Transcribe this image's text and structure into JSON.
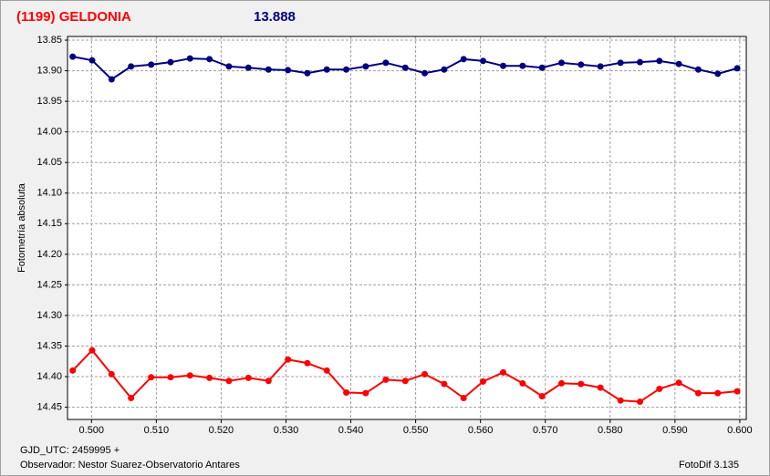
{
  "chart_data": {
    "type": "line",
    "title": "(1199) GELDONIA",
    "subtitle": "13.888",
    "y_label": "Fotometría absoluta",
    "x_note": "GJD_UTC: 2459995 +",
    "observer": "Observador: Nestor Suarez-Observatorio Antares",
    "software": "FotoDif 3.135",
    "x": [
      0.4971,
      0.5001,
      0.5031,
      0.5061,
      0.5092,
      0.5122,
      0.5152,
      0.5182,
      0.5212,
      0.5242,
      0.5273,
      0.5303,
      0.5333,
      0.5363,
      0.5393,
      0.5423,
      0.5454,
      0.5484,
      0.5514,
      0.5544,
      0.5574,
      0.5604,
      0.5635,
      0.5665,
      0.5695,
      0.5725,
      0.5755,
      0.5785,
      0.5816,
      0.5846,
      0.5876,
      0.5906,
      0.5936,
      0.5966,
      0.5996
    ],
    "series": [
      {
        "color": "#00007f",
        "values": [
          13.877,
          13.883,
          13.914,
          13.893,
          13.89,
          13.886,
          13.88,
          13.881,
          13.893,
          13.895,
          13.898,
          13.899,
          13.904,
          13.898,
          13.898,
          13.893,
          13.887,
          13.895,
          13.904,
          13.898,
          13.881,
          13.884,
          13.892,
          13.892,
          13.895,
          13.887,
          13.89,
          13.893,
          13.887,
          13.886,
          13.884,
          13.889,
          13.898,
          13.905,
          13.896
        ]
      },
      {
        "color": "#ff0000",
        "values": [
          14.39,
          14.357,
          14.396,
          14.435,
          14.401,
          14.401,
          14.398,
          14.402,
          14.407,
          14.402,
          14.407,
          14.372,
          14.378,
          14.39,
          14.426,
          14.427,
          14.405,
          14.407,
          14.396,
          14.412,
          14.435,
          14.408,
          14.393,
          14.411,
          14.432,
          14.411,
          14.412,
          14.418,
          14.439,
          14.441,
          14.42,
          14.41,
          14.427,
          14.427,
          14.424
        ]
      }
    ],
    "xlim": [
      0.4963,
      0.601
    ],
    "ylim": [
      13.844,
      14.47
    ],
    "y_inverted": true,
    "grid": true,
    "xticks": [
      {
        "value": 0.5,
        "label": "0.500"
      },
      {
        "value": 0.51,
        "label": "0.510"
      },
      {
        "value": 0.52,
        "label": "0.520"
      },
      {
        "value": 0.53,
        "label": "0.530"
      },
      {
        "value": 0.54,
        "label": "0.540"
      },
      {
        "value": 0.55,
        "label": "0.550"
      },
      {
        "value": 0.56,
        "label": "0.560"
      },
      {
        "value": 0.57,
        "label": "0.570"
      },
      {
        "value": 0.58,
        "label": "0.580"
      },
      {
        "value": 0.59,
        "label": "0.590"
      },
      {
        "value": 0.6,
        "label": "0.600"
      }
    ],
    "yticks": [
      13.85,
      {
        "value": 13.9,
        "label": "13.90"
      },
      13.95,
      {
        "value": 14.0,
        "label": "14.00"
      },
      14.05,
      {
        "value": 14.1,
        "label": "14.10"
      },
      14.15,
      {
        "value": 14.2,
        "label": "14.20"
      },
      14.25,
      {
        "value": 14.3,
        "label": "14.30"
      },
      14.35,
      {
        "value": 14.4,
        "label": "14.40"
      },
      14.45
    ]
  }
}
